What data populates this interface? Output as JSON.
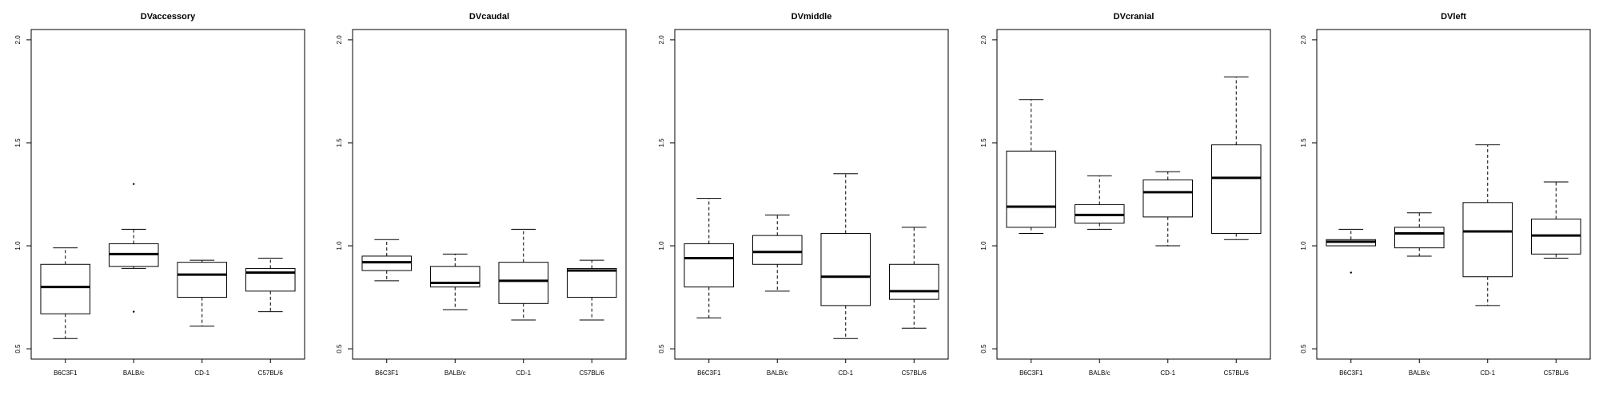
{
  "chart_data": [
    {
      "type": "boxplot",
      "title": "DVaccessory",
      "categories": [
        "B6C3F1",
        "BALB/c",
        "CD-1",
        "C57BL/6"
      ],
      "ylim": [
        0.45,
        2.05
      ],
      "yticks": [
        "0.5",
        "1.0",
        "1.5",
        "2.0"
      ],
      "boxes": [
        {
          "whisker_low": 0.55,
          "q1": 0.67,
          "median": 0.8,
          "q3": 0.91,
          "whisker_high": 0.99,
          "outliers": []
        },
        {
          "whisker_low": 0.89,
          "q1": 0.9,
          "median": 0.96,
          "q3": 1.01,
          "whisker_high": 1.08,
          "outliers": [
            1.3,
            0.68
          ]
        },
        {
          "whisker_low": 0.61,
          "q1": 0.75,
          "median": 0.86,
          "q3": 0.92,
          "whisker_high": 0.93,
          "outliers": []
        },
        {
          "whisker_low": 0.68,
          "q1": 0.78,
          "median": 0.87,
          "q3": 0.89,
          "whisker_high": 0.94,
          "outliers": []
        }
      ]
    },
    {
      "type": "boxplot",
      "title": "DVcaudal",
      "categories": [
        "B6C3F1",
        "BALB/c",
        "CD-1",
        "C57BL/6"
      ],
      "ylim": [
        0.45,
        2.05
      ],
      "yticks": [
        "0.5",
        "1.0",
        "1.5",
        "2.0"
      ],
      "boxes": [
        {
          "whisker_low": 0.83,
          "q1": 0.88,
          "median": 0.92,
          "q3": 0.95,
          "whisker_high": 1.03,
          "outliers": []
        },
        {
          "whisker_low": 0.69,
          "q1": 0.8,
          "median": 0.82,
          "q3": 0.9,
          "whisker_high": 0.96,
          "outliers": []
        },
        {
          "whisker_low": 0.64,
          "q1": 0.72,
          "median": 0.83,
          "q3": 0.92,
          "whisker_high": 1.08,
          "outliers": []
        },
        {
          "whisker_low": 0.64,
          "q1": 0.75,
          "median": 0.88,
          "q3": 0.89,
          "whisker_high": 0.93,
          "outliers": []
        }
      ]
    },
    {
      "type": "boxplot",
      "title": "DVmiddle",
      "categories": [
        "B6C3F1",
        "BALB/c",
        "CD-1",
        "C57BL/6"
      ],
      "ylim": [
        0.45,
        2.05
      ],
      "yticks": [
        "0.5",
        "1.0",
        "1.5",
        "2.0"
      ],
      "boxes": [
        {
          "whisker_low": 0.65,
          "q1": 0.8,
          "median": 0.94,
          "q3": 1.01,
          "whisker_high": 1.23,
          "outliers": []
        },
        {
          "whisker_low": 0.78,
          "q1": 0.91,
          "median": 0.97,
          "q3": 1.05,
          "whisker_high": 1.15,
          "outliers": []
        },
        {
          "whisker_low": 0.55,
          "q1": 0.71,
          "median": 0.85,
          "q3": 1.06,
          "whisker_high": 1.35,
          "outliers": []
        },
        {
          "whisker_low": 0.6,
          "q1": 0.74,
          "median": 0.78,
          "q3": 0.91,
          "whisker_high": 1.09,
          "outliers": []
        }
      ]
    },
    {
      "type": "boxplot",
      "title": "DVcranial",
      "categories": [
        "B6C3F1",
        "BALB/c",
        "CD-1",
        "C57BL/6"
      ],
      "ylim": [
        0.45,
        2.05
      ],
      "yticks": [
        "0.5",
        "1.0",
        "1.5",
        "2.0"
      ],
      "boxes": [
        {
          "whisker_low": 1.06,
          "q1": 1.09,
          "median": 1.19,
          "q3": 1.46,
          "whisker_high": 1.71,
          "outliers": []
        },
        {
          "whisker_low": 1.08,
          "q1": 1.11,
          "median": 1.15,
          "q3": 1.2,
          "whisker_high": 1.34,
          "outliers": []
        },
        {
          "whisker_low": 1.0,
          "q1": 1.14,
          "median": 1.26,
          "q3": 1.32,
          "whisker_high": 1.36,
          "outliers": []
        },
        {
          "whisker_low": 1.03,
          "q1": 1.06,
          "median": 1.33,
          "q3": 1.49,
          "whisker_high": 1.82,
          "outliers": []
        }
      ]
    },
    {
      "type": "boxplot",
      "title": "DVleft",
      "categories": [
        "B6C3F1",
        "BALB/c",
        "CD-1",
        "C57BL/6"
      ],
      "ylim": [
        0.45,
        2.05
      ],
      "yticks": [
        "0.5",
        "1.0",
        "1.5",
        "2.0"
      ],
      "boxes": [
        {
          "whisker_low": 1.0,
          "q1": 1.0,
          "median": 1.02,
          "q3": 1.03,
          "whisker_high": 1.08,
          "outliers": [
            0.87
          ]
        },
        {
          "whisker_low": 0.95,
          "q1": 0.99,
          "median": 1.06,
          "q3": 1.09,
          "whisker_high": 1.16,
          "outliers": []
        },
        {
          "whisker_low": 0.71,
          "q1": 0.85,
          "median": 1.07,
          "q3": 1.21,
          "whisker_high": 1.49,
          "outliers": []
        },
        {
          "whisker_low": 0.94,
          "q1": 0.96,
          "median": 1.05,
          "q3": 1.13,
          "whisker_high": 1.31,
          "outliers": []
        }
      ]
    }
  ]
}
